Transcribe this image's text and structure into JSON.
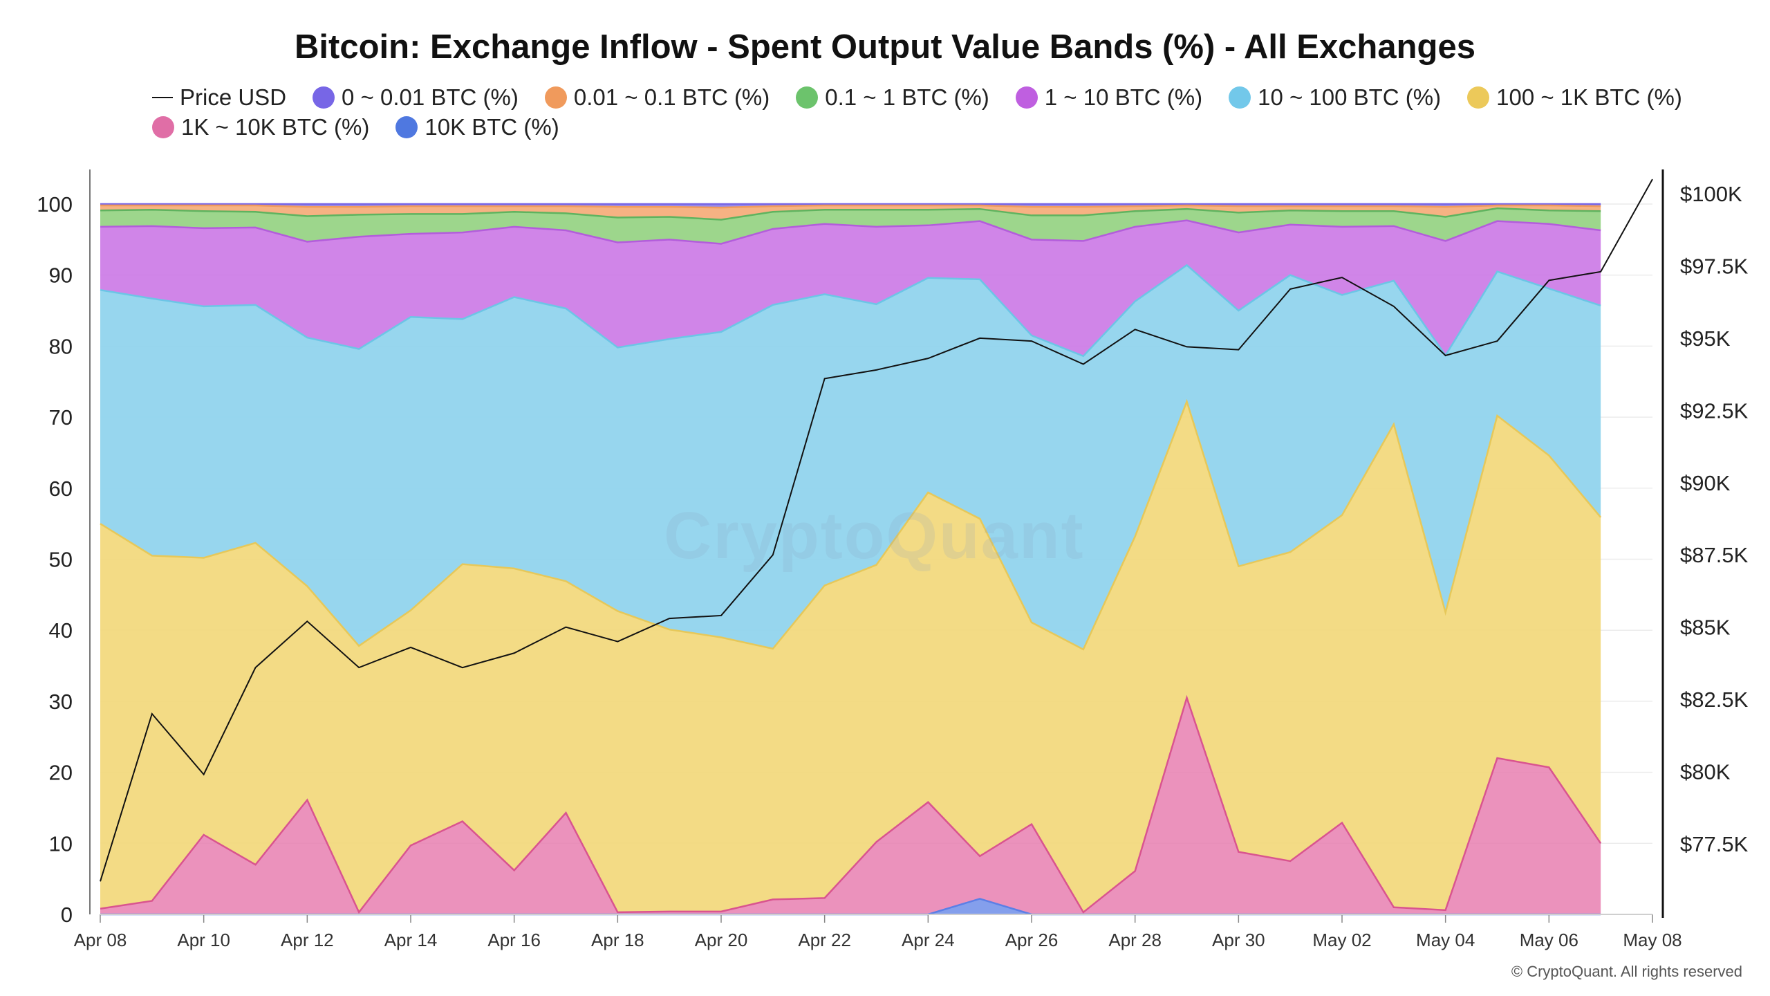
{
  "chart_data": {
    "type": "area",
    "title": "Bitcoin: Exchange Inflow - Spent Output Value Bands (%) - All Exchanges",
    "x": [
      "Apr 08",
      "Apr 09",
      "Apr 10",
      "Apr 11",
      "Apr 12",
      "Apr 13",
      "Apr 14",
      "Apr 15",
      "Apr 16",
      "Apr 17",
      "Apr 18",
      "Apr 19",
      "Apr 20",
      "Apr 21",
      "Apr 22",
      "Apr 23",
      "Apr 24",
      "Apr 25",
      "Apr 26",
      "Apr 27",
      "Apr 28",
      "Apr 29",
      "Apr 30",
      "May 01",
      "May 02",
      "May 03",
      "May 04",
      "May 05",
      "May 06",
      "May 07"
    ],
    "x_ticks": [
      "Apr 08",
      "Apr 10",
      "Apr 12",
      "Apr 14",
      "Apr 16",
      "Apr 18",
      "Apr 20",
      "Apr 22",
      "Apr 24",
      "Apr 26",
      "Apr 28",
      "Apr 30",
      "May 02",
      "May 04",
      "May 06",
      "May 08"
    ],
    "y_left_ticks": [
      "0",
      "10",
      "20",
      "30",
      "40",
      "50",
      "60",
      "70",
      "80",
      "90",
      "100"
    ],
    "y_left_lim": [
      0,
      100
    ],
    "y_right_ticks": [
      "$77.5K",
      "$80K",
      "$82.5K",
      "$85K",
      "$87.5K",
      "$90K",
      "$92.5K",
      "$95K",
      "$97.5K",
      "$100K"
    ],
    "y_right_lim": [
      75000,
      100500
    ],
    "legend_placement": "top-left",
    "series_cumulative": [
      {
        "name": "10K BTC (%)",
        "color": "#5b7fe6",
        "fill": "rgba(91,127,230,0.75)",
        "values": [
          0,
          0,
          0,
          0,
          0,
          0,
          0,
          0,
          0,
          0,
          0,
          0,
          0,
          0,
          0,
          0,
          0,
          2.2,
          0,
          0,
          0,
          0,
          0,
          0,
          0,
          0,
          0,
          0,
          0,
          0
        ]
      },
      {
        "name": "1K ~ 10K BTC (%)",
        "color": "#d9548f",
        "fill": "rgba(232,127,176,0.85)",
        "values": [
          0.8,
          1.9,
          11.2,
          7,
          16.1,
          0.3,
          9.7,
          13.1,
          6.2,
          14.3,
          0.3,
          0.4,
          0.4,
          2.1,
          2.3,
          10.2,
          15.8,
          8.2,
          12.7,
          0.3,
          6.1,
          30.5,
          8.8,
          7.5,
          12.9,
          1,
          0.6,
          22,
          20.7,
          10
        ]
      },
      {
        "name": "100 ~ 1K BTC (%)",
        "color": "#e6c85a",
        "fill": "rgba(242,217,126,0.95)",
        "values": [
          55,
          50.5,
          50.2,
          52.3,
          46.2,
          37.8,
          42.8,
          49.3,
          48.7,
          46.9,
          42.7,
          40.1,
          39,
          37.4,
          46.3,
          49.2,
          59.4,
          55.7,
          41.1,
          37.3,
          53.2,
          72.2,
          49,
          51,
          56.2,
          69,
          42.5,
          70.2,
          64.6,
          55.9
        ]
      },
      {
        "name": "10 ~ 100 BTC (%)",
        "color": "#6cc5e6",
        "fill": "rgba(145,212,237,0.95)",
        "values": [
          87.9,
          86.7,
          85.6,
          85.8,
          81.2,
          79.6,
          84.1,
          83.8,
          86.9,
          85.3,
          79.8,
          81,
          82,
          85.8,
          87.3,
          85.9,
          89.6,
          89.4,
          81.5,
          78.6,
          86.3,
          91.4,
          85,
          90,
          87.2,
          89.2,
          78.7,
          90.5,
          88.1,
          85.7
        ]
      },
      {
        "name": "1 ~ 10 BTC (%)",
        "color": "#b35ddb",
        "fill": "rgba(203,120,230,0.90)",
        "values": [
          96.8,
          96.9,
          96.6,
          96.7,
          94.7,
          95.4,
          95.8,
          96,
          96.8,
          96.3,
          94.6,
          95,
          94.4,
          96.5,
          97.2,
          96.8,
          97,
          97.6,
          95,
          94.8,
          96.8,
          97.7,
          96,
          97.1,
          96.8,
          96.9,
          94.8,
          97.6,
          97.2,
          96.3
        ]
      },
      {
        "name": "0.1 ~ 1 BTC (%)",
        "color": "#5fb35f",
        "fill": "rgba(146,209,128,0.90)",
        "values": [
          99.1,
          99.2,
          99,
          98.9,
          98.3,
          98.5,
          98.6,
          98.6,
          98.9,
          98.7,
          98.1,
          98.2,
          97.8,
          98.9,
          99.2,
          99.2,
          99.2,
          99.3,
          98.4,
          98.4,
          99,
          99.3,
          98.8,
          99.1,
          99,
          99,
          98.2,
          99.4,
          99.1,
          99
        ]
      },
      {
        "name": "0.01 ~ 0.1 BTC (%)",
        "color": "#f09a5c",
        "fill": "rgba(245,170,118,0.90)",
        "values": [
          99.8,
          99.8,
          99.8,
          99.8,
          99.6,
          99.6,
          99.7,
          99.7,
          99.7,
          99.7,
          99.6,
          99.6,
          99.5,
          99.7,
          99.8,
          99.8,
          99.8,
          99.8,
          99.6,
          99.6,
          99.7,
          99.8,
          99.7,
          99.7,
          99.7,
          99.7,
          99.6,
          99.8,
          99.8,
          99.7
        ]
      },
      {
        "name": "0 ~ 0.01 BTC (%)",
        "color": "#7766e6",
        "fill": "rgba(139,124,232,0.90)",
        "values": [
          100,
          100,
          100,
          100,
          100,
          100,
          100,
          100,
          100,
          100,
          100,
          100,
          100,
          100,
          100,
          100,
          100,
          100,
          100,
          100,
          100,
          100,
          100,
          100,
          100,
          100,
          100,
          100,
          100,
          100
        ]
      }
    ],
    "price_series": {
      "name": "Price USD",
      "x": [
        "Apr 08",
        "Apr 09",
        "Apr 10",
        "Apr 11",
        "Apr 12",
        "Apr 13",
        "Apr 14",
        "Apr 15",
        "Apr 16",
        "Apr 17",
        "Apr 18",
        "Apr 19",
        "Apr 20",
        "Apr 21",
        "Apr 22",
        "Apr 23",
        "Apr 24",
        "Apr 25",
        "Apr 26",
        "Apr 27",
        "Apr 28",
        "Apr 29",
        "Apr 30",
        "May 01",
        "May 02",
        "May 03",
        "May 04",
        "May 05",
        "May 06",
        "May 07",
        "May 08"
      ],
      "values": [
        76200,
        82000,
        79900,
        83600,
        85200,
        83600,
        84300,
        83600,
        84100,
        85000,
        84500,
        85300,
        85400,
        87500,
        93600,
        93900,
        94300,
        95000,
        94900,
        94100,
        95300,
        94700,
        94600,
        96700,
        97100,
        96100,
        94400,
        94900,
        97000,
        97300,
        100500
      ]
    },
    "legend": [
      {
        "label": "Price USD",
        "kind": "line",
        "color": "#111111"
      },
      {
        "label": "0 ~ 0.01 BTC (%)",
        "kind": "dot",
        "color": "#7766e6"
      },
      {
        "label": "0.01 ~ 0.1 BTC (%)",
        "kind": "dot",
        "color": "#f09a5c"
      },
      {
        "label": "0.1 ~ 1 BTC (%)",
        "kind": "dot",
        "color": "#6cc36c"
      },
      {
        "label": "1 ~ 10 BTC (%)",
        "kind": "dot",
        "color": "#bf5fe0"
      },
      {
        "label": "10 ~ 100 BTC (%)",
        "kind": "dot",
        "color": "#72c8ea"
      },
      {
        "label": "100 ~ 1K BTC (%)",
        "kind": "dot",
        "color": "#ecc95a"
      },
      {
        "label": "1K ~ 10K BTC (%)",
        "kind": "dot",
        "color": "#e06ea6"
      },
      {
        "label": "10K BTC (%)",
        "kind": "dot",
        "color": "#4f78e0"
      }
    ]
  },
  "watermark": "CryptoQuant",
  "copyright": "© CryptoQuant. All rights reserved"
}
